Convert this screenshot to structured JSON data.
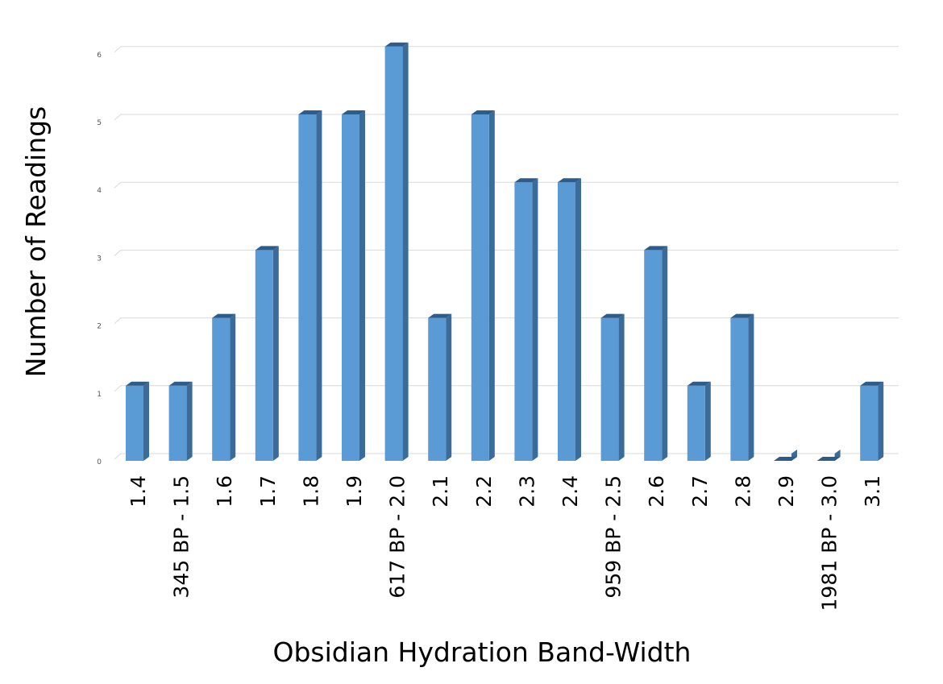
{
  "chart_data": {
    "type": "bar",
    "xlabel": "Obsidian Hydration Band-Width",
    "ylabel": "Number of Readings",
    "categories": [
      "1.4",
      "345 BP - 1.5",
      "1.6",
      "1.7",
      "1.8",
      "1.9",
      "617 BP - 2.0",
      "2.1",
      "2.2",
      "2.3",
      "2.4",
      "959 BP - 2.5",
      "2.6",
      "2.7",
      "2.8",
      "2.9",
      "1981 BP - 3.0",
      "3.1"
    ],
    "values": [
      1,
      1,
      2,
      3,
      5,
      5,
      6,
      2,
      5,
      4,
      4,
      2,
      3,
      1,
      2,
      0,
      0,
      1
    ],
    "ylim": [
      0,
      6
    ],
    "yticks": [
      "0",
      "1",
      "2",
      "3",
      "4",
      "5",
      "6"
    ],
    "grid": true,
    "bar_color": "#5b9bd5",
    "bar_side_color": "#3a6b99",
    "bar_top_color": "#2e5c8a",
    "grid_color": "#d9d9d9"
  }
}
